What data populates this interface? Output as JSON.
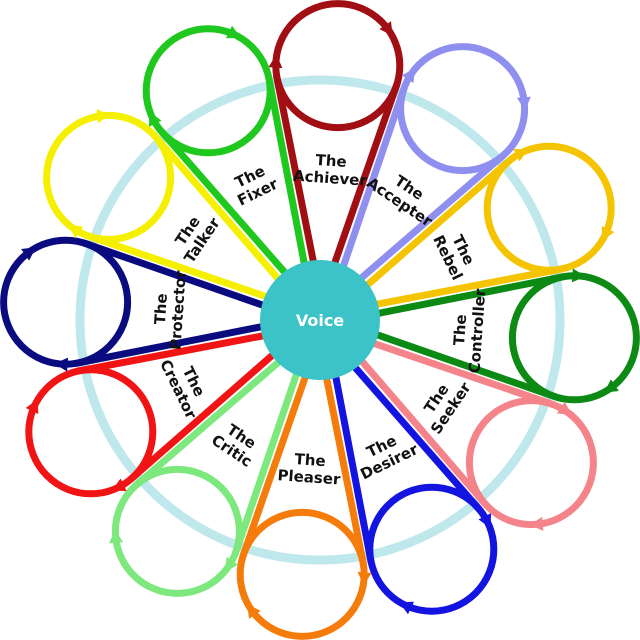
{
  "center": {
    "label": "Voice",
    "color": "#3cc3c8"
  },
  "ring_color": "#bfe8ec",
  "petals": [
    {
      "line1": "The",
      "line2": "Achiever",
      "color": "#a10e14"
    },
    {
      "line1": "The",
      "line2": "Accepter",
      "color": "#8f8ff0"
    },
    {
      "line1": "The",
      "line2": "Rebel",
      "color": "#f5c400"
    },
    {
      "line1": "The",
      "line2": "Controller",
      "color": "#0c8a14"
    },
    {
      "line1": "The",
      "line2": "Seeker",
      "color": "#f5838a"
    },
    {
      "line1": "The",
      "line2": "Desirer",
      "color": "#1414e0"
    },
    {
      "line1": "The",
      "line2": "Pleaser",
      "color": "#f57c0a"
    },
    {
      "line1": "The",
      "line2": "Critic",
      "color": "#7de87d"
    },
    {
      "line1": "The",
      "line2": "Creator",
      "color": "#f01414"
    },
    {
      "line1": "The",
      "line2": "Protector",
      "color": "#0b0b80"
    },
    {
      "line1": "The",
      "line2": "Talker",
      "color": "#f5f000"
    },
    {
      "line1": "The",
      "line2": "Fixer",
      "color": "#1ec81e"
    }
  ]
}
